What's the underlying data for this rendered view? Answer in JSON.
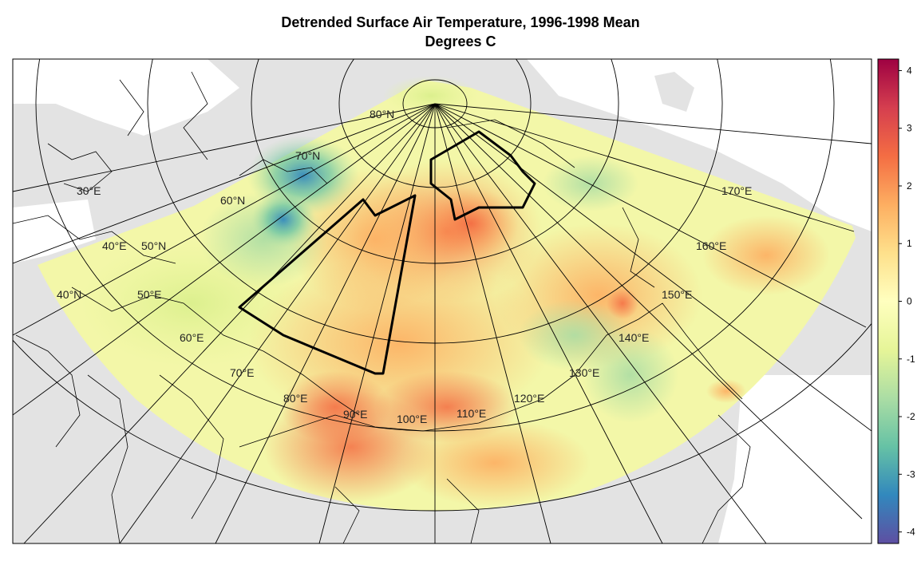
{
  "title": {
    "line1": "Detrended Surface Air Temperature, 1996-1998 Mean",
    "line2": "Degrees C"
  },
  "map": {
    "latitude_labels": [
      "80°N",
      "70°N",
      "60°N",
      "50°N",
      "40°N",
      "40°E",
      "50°N",
      "40°N"
    ],
    "lat_label_list": [
      "80°N",
      "70°N",
      "60°N",
      "50°N",
      "40°N"
    ],
    "longitude_labels": [
      "30°E",
      "40°E",
      "50°E",
      "60°E",
      "70°E",
      "80°E",
      "90°E",
      "100°E",
      "110°E",
      "120°E",
      "130°E",
      "140°E",
      "150°E",
      "160°E",
      "170°E"
    ],
    "colors": {
      "land": "#e3e3e3",
      "ocean": "#ffffff",
      "border": "#000000"
    }
  },
  "colorbar": {
    "ticks": [
      "4",
      "3",
      "2",
      "1",
      "0",
      "-1",
      "-2",
      "-3",
      "-4"
    ],
    "range": [
      -4.2,
      4.2
    ],
    "palette": [
      "#5e4fa2",
      "#3288bd",
      "#66c2a5",
      "#abdda4",
      "#e6f598",
      "#ffffbf",
      "#fee08b",
      "#fdae61",
      "#f46d43",
      "#d53e4f",
      "#9e0142"
    ]
  }
}
